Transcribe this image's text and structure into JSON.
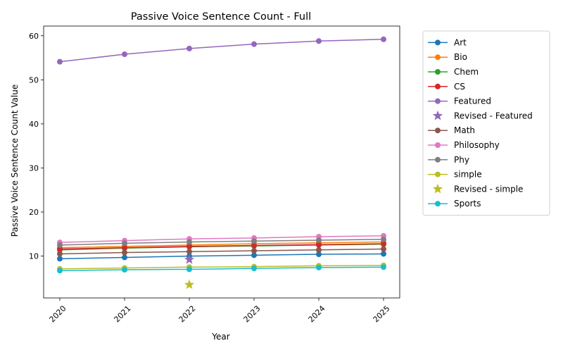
{
  "chart_data": {
    "type": "line",
    "title": "Passive Voice Sentence Count - Full",
    "xlabel": "Year",
    "ylabel": "Passive Voice Sentence Count Value",
    "x": [
      2020,
      2021,
      2022,
      2023,
      2024,
      2025
    ],
    "x_tick_labels": [
      "2020",
      "2021",
      "2022",
      "2023",
      "2024",
      "2025"
    ],
    "xlim": [
      2019.75,
      2025.25
    ],
    "ylim": [
      0.5,
      62.2
    ],
    "y_ticks": [
      10,
      20,
      30,
      40,
      50,
      60
    ],
    "y_tick_labels": [
      "10",
      "20",
      "30",
      "40",
      "50",
      "60"
    ],
    "grid": false,
    "legend_position": "outside-right",
    "series": [
      {
        "name": "Art",
        "color": "#1f77b4",
        "values": [
          9.4,
          9.7,
          10.0,
          10.2,
          10.4,
          10.5
        ]
      },
      {
        "name": "Bio",
        "color": "#ff7f0e",
        "values": [
          11.9,
          12.2,
          12.5,
          12.8,
          13.0,
          13.2
        ]
      },
      {
        "name": "Chem",
        "color": "#2ca02c",
        "values": [
          11.4,
          11.8,
          12.1,
          12.3,
          12.5,
          12.7
        ]
      },
      {
        "name": "CS",
        "color": "#d62728",
        "values": [
          11.6,
          11.9,
          12.2,
          12.4,
          12.6,
          12.8
        ]
      },
      {
        "name": "Featured",
        "color": "#9467bd",
        "values": [
          54.1,
          55.8,
          57.1,
          58.1,
          58.8,
          59.2
        ]
      },
      {
        "name": "Math",
        "color": "#8c564b",
        "values": [
          10.5,
          10.8,
          11.0,
          11.2,
          11.4,
          11.6
        ]
      },
      {
        "name": "Philosophy",
        "color": "#e377c2",
        "values": [
          13.1,
          13.5,
          13.9,
          14.1,
          14.4,
          14.6
        ]
      },
      {
        "name": "Phy",
        "color": "#7f7f7f",
        "values": [
          12.5,
          12.9,
          13.2,
          13.4,
          13.6,
          13.8
        ]
      },
      {
        "name": "simple",
        "color": "#bcbd22",
        "values": [
          7.1,
          7.3,
          7.5,
          7.6,
          7.8,
          7.9
        ]
      },
      {
        "name": "Sports",
        "color": "#17becf",
        "values": [
          6.7,
          6.9,
          7.0,
          7.2,
          7.4,
          7.5
        ]
      }
    ],
    "revised_points": [
      {
        "name": "Revised - Featured",
        "color": "#9467bd",
        "x": 2022,
        "y": 9.2
      },
      {
        "name": "Revised - simple",
        "color": "#bcbd22",
        "x": 2022,
        "y": 3.5
      }
    ],
    "legend": [
      {
        "label": "Art",
        "color": "#1f77b4",
        "marker": "line-circle"
      },
      {
        "label": "Bio",
        "color": "#ff7f0e",
        "marker": "line-circle"
      },
      {
        "label": "Chem",
        "color": "#2ca02c",
        "marker": "line-circle"
      },
      {
        "label": "CS",
        "color": "#d62728",
        "marker": "line-circle"
      },
      {
        "label": "Featured",
        "color": "#9467bd",
        "marker": "line-circle"
      },
      {
        "label": "Revised - Featured",
        "color": "#9467bd",
        "marker": "star"
      },
      {
        "label": "Math",
        "color": "#8c564b",
        "marker": "line-circle"
      },
      {
        "label": "Philosophy",
        "color": "#e377c2",
        "marker": "line-circle"
      },
      {
        "label": "Phy",
        "color": "#7f7f7f",
        "marker": "line-circle"
      },
      {
        "label": "simple",
        "color": "#bcbd22",
        "marker": "line-circle"
      },
      {
        "label": "Revised - simple",
        "color": "#bcbd22",
        "marker": "star"
      },
      {
        "label": "Sports",
        "color": "#17becf",
        "marker": "line-circle"
      }
    ]
  }
}
